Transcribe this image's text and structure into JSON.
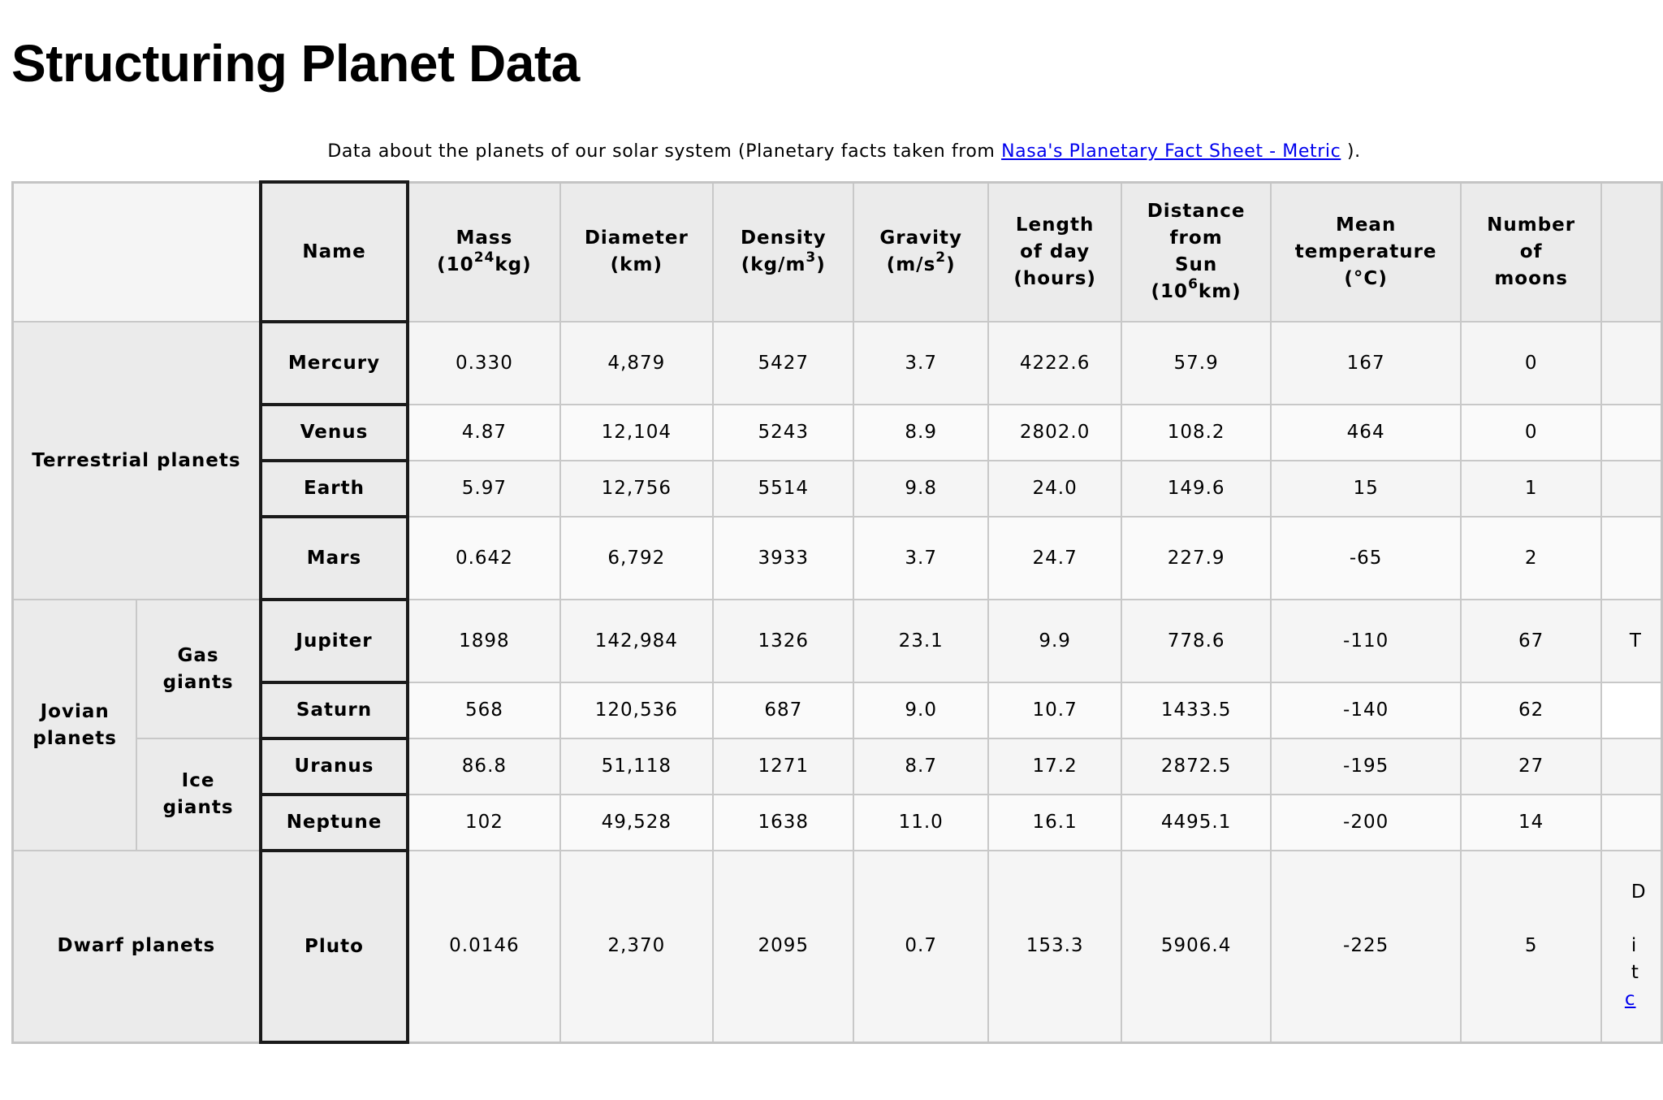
{
  "title": "Structuring Planet Data",
  "caption": {
    "prefix": "Data about the planets of our solar system (Planetary facts taken from",
    "link_text": "Nasa's Planetary Fact Sheet - Metric",
    "suffix": ")."
  },
  "headers": {
    "name": "Name",
    "mass": {
      "line1": "Mass",
      "pre": "(10",
      "sup": "24",
      "post": "kg)"
    },
    "diameter": {
      "line1": "Diameter",
      "line2": "(km)"
    },
    "density": {
      "line1": "Density",
      "pre": "(kg/m",
      "sup": "3",
      "post": ")"
    },
    "gravity": {
      "line1": "Gravity",
      "pre": "(m/s",
      "sup": "2",
      "post": ")"
    },
    "length_of_day": {
      "line1": "Length",
      "line2": "of day",
      "line3": "(hours)"
    },
    "distance": {
      "line1": "Distance",
      "line2": "from",
      "line3": "Sun",
      "pre": "(10",
      "sup": "6",
      "post": "km)"
    },
    "mean_temperature": {
      "line1": "Mean",
      "line2": "temperature",
      "line3": "(°C)"
    },
    "moons": {
      "line1": "Number",
      "line2": "of",
      "line3": "moons"
    }
  },
  "groups": {
    "terrestrial": "Terrestrial planets",
    "jovian": {
      "line1": "Jovian",
      "line2": "planets"
    },
    "gas_giants": {
      "line1": "Gas",
      "line2": "giants"
    },
    "ice_giants": {
      "line1": "Ice",
      "line2": "giants"
    },
    "dwarf": "Dwarf planets"
  },
  "planets": [
    {
      "name": "Mercury",
      "mass": "0.330",
      "diameter": "4,879",
      "density": "5427",
      "gravity": "3.7",
      "day": "4222.6",
      "distance": "57.9",
      "temp": "167",
      "moons": "0"
    },
    {
      "name": "Venus",
      "mass": "4.87",
      "diameter": "12,104",
      "density": "5243",
      "gravity": "8.9",
      "day": "2802.0",
      "distance": "108.2",
      "temp": "464",
      "moons": "0"
    },
    {
      "name": "Earth",
      "mass": "5.97",
      "diameter": "12,756",
      "density": "5514",
      "gravity": "9.8",
      "day": "24.0",
      "distance": "149.6",
      "temp": "15",
      "moons": "1"
    },
    {
      "name": "Mars",
      "mass": "0.642",
      "diameter": "6,792",
      "density": "3933",
      "gravity": "3.7",
      "day": "24.7",
      "distance": "227.9",
      "temp": "-65",
      "moons": "2"
    },
    {
      "name": "Jupiter",
      "mass": "1898",
      "diameter": "142,984",
      "density": "1326",
      "gravity": "23.1",
      "day": "9.9",
      "distance": "778.6",
      "temp": "-110",
      "moons": "67"
    },
    {
      "name": "Saturn",
      "mass": "568",
      "diameter": "120,536",
      "density": "687",
      "gravity": "9.0",
      "day": "10.7",
      "distance": "1433.5",
      "temp": "-140",
      "moons": "62"
    },
    {
      "name": "Uranus",
      "mass": "86.8",
      "diameter": "51,118",
      "density": "1271",
      "gravity": "8.7",
      "day": "17.2",
      "distance": "2872.5",
      "temp": "-195",
      "moons": "27"
    },
    {
      "name": "Neptune",
      "mass": "102",
      "diameter": "49,528",
      "density": "1638",
      "gravity": "11.0",
      "day": "16.1",
      "distance": "4495.1",
      "temp": "-200",
      "moons": "14"
    },
    {
      "name": "Pluto",
      "mass": "0.0146",
      "diameter": "2,370",
      "density": "2095",
      "gravity": "0.7",
      "day": "153.3",
      "distance": "5906.4",
      "temp": "-225",
      "moons": "5"
    }
  ],
  "notes_column": {
    "jupiter_fragment": "T",
    "pluto_fragment_1": "D",
    "pluto_fragment_2": "i",
    "pluto_fragment_3": "t",
    "pluto_fragment_link": "c"
  }
}
